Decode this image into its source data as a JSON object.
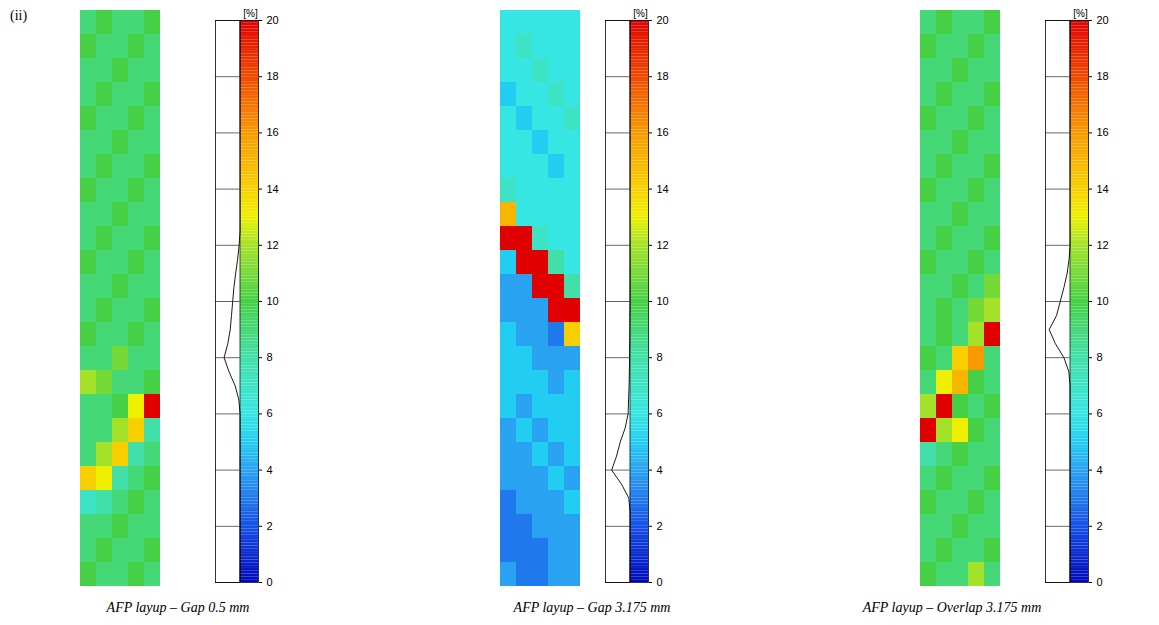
{
  "panel_label": "(ii)",
  "chart_data": [
    {
      "type": "heatmap",
      "title": "AFP layup – Gap 0.5 mm",
      "cells": [
        [
          9,
          10,
          9,
          9,
          10
        ],
        [
          10,
          9,
          9,
          10,
          9
        ],
        [
          9,
          9,
          10,
          9,
          9
        ],
        [
          9,
          10,
          9,
          9,
          10
        ],
        [
          10,
          9,
          9,
          10,
          9
        ],
        [
          9,
          9,
          10,
          9,
          9
        ],
        [
          9,
          10,
          9,
          9,
          10
        ],
        [
          10,
          9,
          9,
          10,
          9
        ],
        [
          9,
          9,
          10,
          9,
          9
        ],
        [
          9,
          10,
          9,
          9,
          10
        ],
        [
          10,
          9,
          9,
          10,
          9
        ],
        [
          9,
          9,
          10,
          9,
          9
        ],
        [
          9,
          10,
          9,
          9,
          10
        ],
        [
          10,
          9,
          9,
          10,
          9
        ],
        [
          9,
          9,
          11,
          9,
          9
        ],
        [
          12,
          11,
          9,
          9,
          10
        ],
        [
          9,
          9,
          10,
          13,
          20
        ],
        [
          9,
          9,
          12,
          14,
          8
        ],
        [
          9,
          12,
          14,
          8,
          9
        ],
        [
          14,
          13,
          8,
          9,
          10
        ],
        [
          7,
          8,
          9,
          10,
          9
        ],
        [
          9,
          9,
          10,
          9,
          9
        ],
        [
          9,
          10,
          9,
          9,
          10
        ],
        [
          10,
          9,
          9,
          10,
          9
        ]
      ],
      "colorbar": {
        "label": "[%]",
        "range": [
          0,
          20
        ],
        "ticks": [
          0,
          2,
          4,
          6,
          8,
          10,
          12,
          14,
          16,
          18,
          20
        ]
      },
      "histogram": {
        "x": [
          0,
          6,
          6.5,
          7,
          7.5,
          8,
          8.5,
          9,
          9.5,
          10,
          10.5,
          11,
          11.5,
          12,
          12.5,
          20
        ],
        "values": [
          0,
          0,
          0.05,
          0.2,
          0.45,
          0.65,
          0.5,
          0.4,
          0.35,
          0.3,
          0.25,
          0.18,
          0.1,
          0.04,
          0,
          0
        ]
      }
    },
    {
      "type": "heatmap",
      "title": "AFP layup – Gap 3.175 mm",
      "cells": [
        [
          6,
          6,
          6,
          6,
          6
        ],
        [
          6,
          7,
          6,
          6,
          6
        ],
        [
          6,
          6,
          7,
          6,
          6
        ],
        [
          5,
          6,
          6,
          7,
          6
        ],
        [
          6,
          5,
          6,
          6,
          7
        ],
        [
          6,
          6,
          5,
          6,
          6
        ],
        [
          6,
          6,
          6,
          5,
          6
        ],
        [
          7,
          6,
          6,
          6,
          6
        ],
        [
          15,
          6,
          6,
          6,
          6
        ],
        [
          20,
          20,
          7,
          6,
          6
        ],
        [
          5,
          20,
          20,
          8,
          6
        ],
        [
          4,
          4,
          20,
          20,
          8
        ],
        [
          4,
          4,
          4,
          20,
          20
        ],
        [
          5,
          4,
          4,
          3,
          14
        ],
        [
          5,
          5,
          4,
          4,
          4
        ],
        [
          5,
          5,
          5,
          4,
          5
        ],
        [
          5,
          4,
          5,
          5,
          5
        ],
        [
          4,
          5,
          4,
          5,
          5
        ],
        [
          4,
          4,
          5,
          4,
          5
        ],
        [
          4,
          4,
          4,
          5,
          4
        ],
        [
          3,
          4,
          4,
          4,
          5
        ],
        [
          3,
          3,
          4,
          4,
          4
        ],
        [
          3,
          3,
          3,
          4,
          4
        ],
        [
          4,
          3,
          3,
          4,
          4
        ]
      ],
      "colorbar": {
        "label": "[%]",
        "range": [
          0,
          20
        ],
        "ticks": [
          0,
          2,
          4,
          6,
          8,
          10,
          12,
          14,
          16,
          18,
          20
        ]
      },
      "histogram": {
        "x": [
          0,
          2.5,
          3,
          3.5,
          4,
          4.5,
          5,
          5.5,
          6,
          7,
          8,
          9,
          10,
          20
        ],
        "values": [
          0,
          0,
          0.05,
          0.35,
          0.75,
          0.55,
          0.4,
          0.2,
          0.08,
          0.04,
          0.02,
          0.01,
          0,
          0
        ]
      }
    },
    {
      "type": "heatmap",
      "title": "AFP layup – Overlap 3.175 mm",
      "cells": [
        [
          9,
          10,
          9,
          9,
          10
        ],
        [
          10,
          9,
          9,
          10,
          9
        ],
        [
          9,
          9,
          10,
          9,
          9
        ],
        [
          9,
          10,
          9,
          9,
          10
        ],
        [
          10,
          9,
          9,
          10,
          9
        ],
        [
          9,
          9,
          10,
          9,
          9
        ],
        [
          9,
          10,
          9,
          9,
          10
        ],
        [
          10,
          9,
          9,
          10,
          9
        ],
        [
          9,
          9,
          10,
          9,
          9
        ],
        [
          9,
          10,
          9,
          9,
          10
        ],
        [
          10,
          9,
          9,
          10,
          9
        ],
        [
          9,
          9,
          10,
          9,
          11
        ],
        [
          9,
          10,
          9,
          11,
          12
        ],
        [
          9,
          10,
          9,
          12,
          20
        ],
        [
          10,
          9,
          14,
          16,
          9
        ],
        [
          9,
          13,
          15,
          10,
          9
        ],
        [
          12,
          20,
          10,
          9,
          10
        ],
        [
          20,
          12,
          13,
          10,
          9
        ],
        [
          8,
          9,
          10,
          9,
          9
        ],
        [
          9,
          10,
          9,
          9,
          10
        ],
        [
          10,
          9,
          9,
          10,
          9
        ],
        [
          9,
          9,
          10,
          9,
          9
        ],
        [
          9,
          10,
          9,
          9,
          10
        ],
        [
          10,
          9,
          9,
          12,
          9
        ]
      ],
      "colorbar": {
        "label": "[%]",
        "range": [
          0,
          20
        ],
        "ticks": [
          0,
          2,
          4,
          6,
          8,
          10,
          12,
          14,
          16,
          18,
          20
        ]
      },
      "histogram": {
        "x": [
          0,
          7,
          7.5,
          8,
          8.5,
          9,
          9.5,
          10,
          10.5,
          11,
          11.5,
          12,
          20
        ],
        "values": [
          0,
          0,
          0.05,
          0.25,
          0.6,
          0.85,
          0.55,
          0.4,
          0.25,
          0.12,
          0.04,
          0,
          0
        ]
      }
    }
  ]
}
